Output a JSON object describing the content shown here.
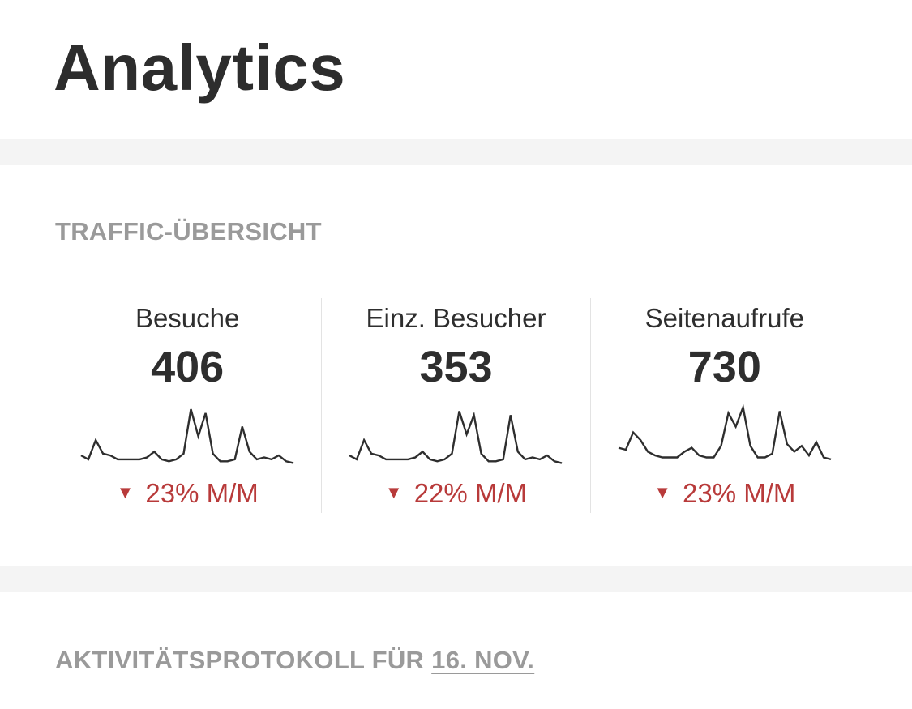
{
  "header": {
    "title": "Analytics"
  },
  "traffic": {
    "heading": "TRAFFIC-ÜBERSICHT",
    "stats": [
      {
        "label": "Besuche",
        "value": "406",
        "change": "23% M/M",
        "trend": "down",
        "sparkline": [
          3,
          1,
          11,
          4,
          3,
          1,
          1,
          1,
          1,
          2,
          5,
          1,
          0,
          1,
          4,
          27,
          13,
          25,
          4,
          0,
          0,
          1,
          18,
          5,
          1,
          2,
          1,
          3,
          0,
          -1
        ]
      },
      {
        "label": "Einz. Besucher",
        "value": "353",
        "change": "22% M/M",
        "trend": "down",
        "sparkline": [
          3,
          1,
          11,
          4,
          3,
          1,
          1,
          1,
          1,
          2,
          5,
          1,
          0,
          1,
          4,
          26,
          14,
          24,
          4,
          0,
          0,
          1,
          24,
          5,
          1,
          2,
          1,
          3,
          0,
          -1
        ]
      },
      {
        "label": "Seitenaufrufe",
        "value": "730",
        "change": "23% M/M",
        "trend": "down",
        "sparkline": [
          7,
          6,
          15,
          11,
          5,
          3,
          2,
          2,
          2,
          5,
          7,
          3,
          2,
          2,
          8,
          25,
          18,
          28,
          8,
          2,
          2,
          4,
          26,
          9,
          5,
          8,
          3,
          10,
          2,
          1
        ]
      }
    ],
    "trend_color": "#b83a3a",
    "trend_icon": "triangle-down-icon"
  },
  "activity": {
    "heading": "AKTIVITÄTSPROTOKOLL FÜR",
    "date_link": "16. NOV."
  }
}
